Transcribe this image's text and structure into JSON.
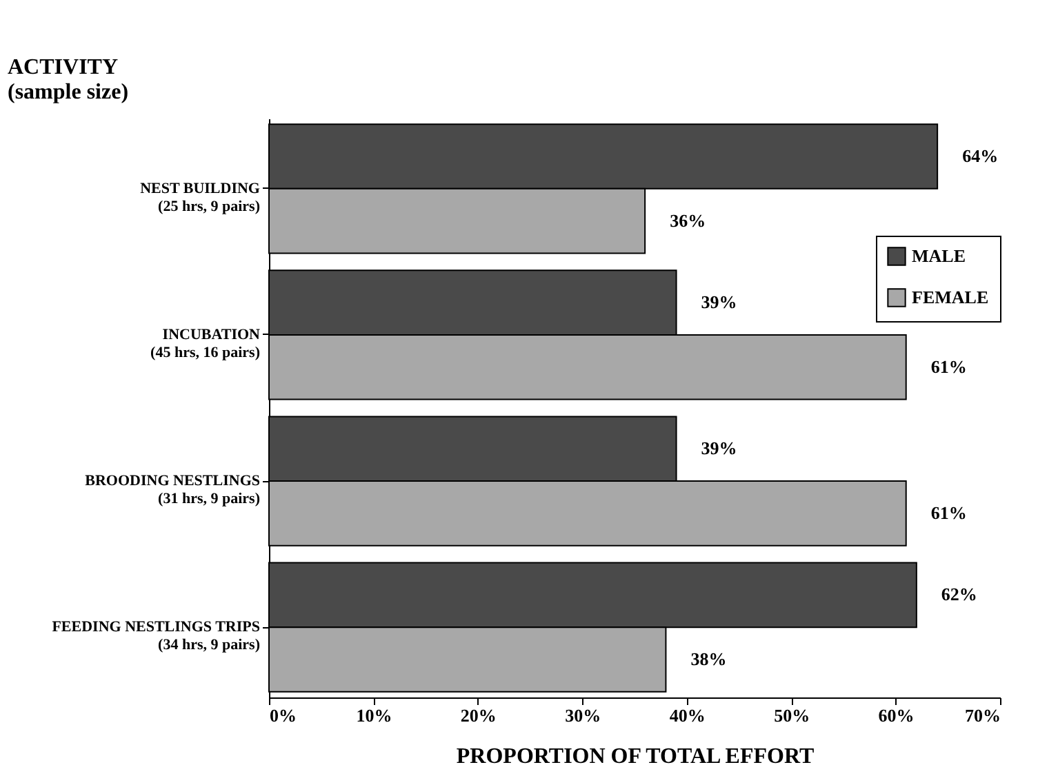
{
  "chart_data": {
    "type": "bar",
    "orientation": "horizontal",
    "ylabel": "ACTIVITY\n(sample size)",
    "xlabel": "PROPORTION OF TOTAL EFFORT",
    "categories": [
      "NEST BUILDING\n(25 hrs, 9 pairs)",
      "INCUBATION\n(45 hrs, 16 pairs)",
      "BROODING NESTLINGS\n(31 hrs, 9 pairs)",
      "FEEDING NESTLINGS TRIPS\n(34 hrs, 9 pairs)"
    ],
    "series": [
      {
        "name": "MALE",
        "color": "#4a4a4a",
        "values": [
          64,
          39,
          39,
          62
        ],
        "value_labels": [
          "64%",
          "39%",
          "39%",
          "62%"
        ]
      },
      {
        "name": "FEMALE",
        "color": "#a8a8a8",
        "values": [
          36,
          61,
          61,
          38
        ],
        "value_labels": [
          "36%",
          "61%",
          "61%",
          "38%"
        ]
      }
    ],
    "xlim": [
      0,
      70
    ],
    "xticks": [
      {
        "value": 0,
        "label": "0%"
      },
      {
        "value": 10,
        "label": "10%"
      },
      {
        "value": 20,
        "label": "20%"
      },
      {
        "value": 30,
        "label": "30%"
      },
      {
        "value": 40,
        "label": "40%"
      },
      {
        "value": 50,
        "label": "50%"
      },
      {
        "value": 60,
        "label": "60%"
      },
      {
        "value": 70,
        "label": "70%"
      }
    ],
    "legend": "top right",
    "grid": false
  }
}
